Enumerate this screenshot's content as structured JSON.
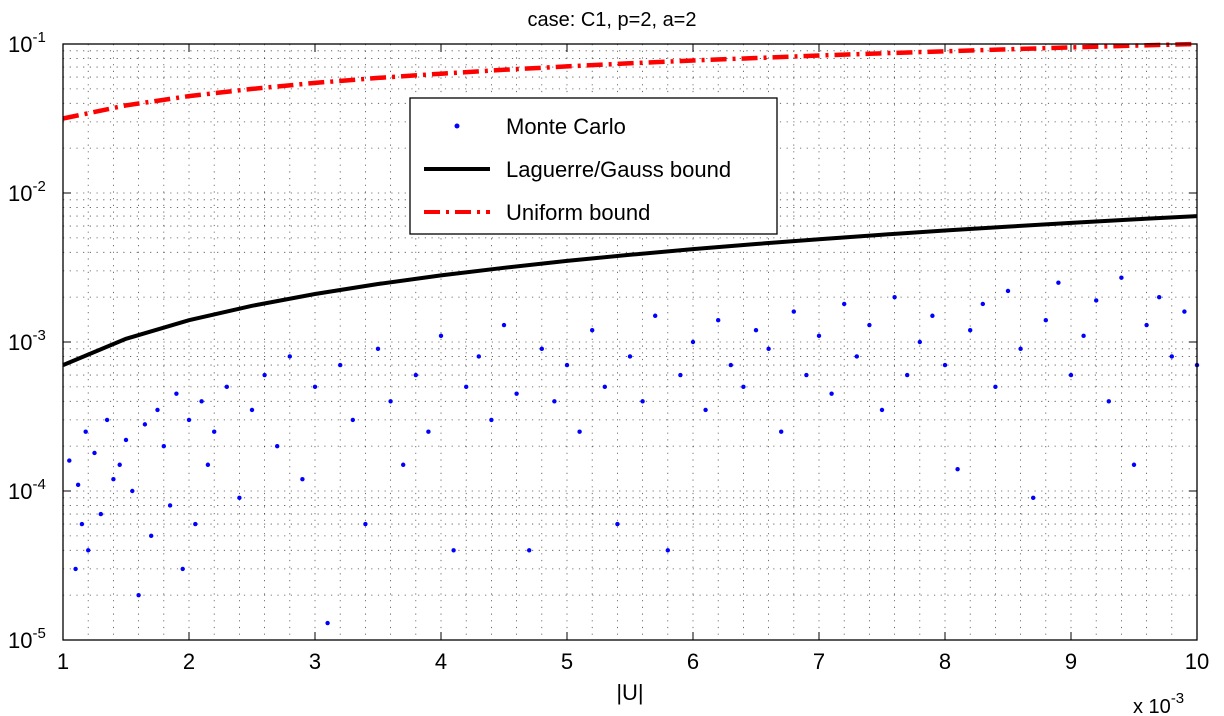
{
  "chart_data": {
    "type": "scatter",
    "title": "case: C1, p=2, a=2",
    "xlabel": "|U|",
    "x_multiplier": "x 10",
    "x_multiplier_exponent": "-3",
    "xlim": [
      1,
      10
    ],
    "ylim_exponent": [
      -5,
      -1
    ],
    "yscale": "log",
    "grid": "dotted, major and minor",
    "x_ticks": [
      "1",
      "2",
      "3",
      "4",
      "5",
      "6",
      "7",
      "8",
      "9",
      "10"
    ],
    "y_ticks": [
      {
        "base": "10",
        "exp": "-5",
        "value_exp": -5
      },
      {
        "base": "10",
        "exp": "-4",
        "value_exp": -4
      },
      {
        "base": "10",
        "exp": "-3",
        "value_exp": -3
      },
      {
        "base": "10",
        "exp": "-2",
        "value_exp": -2
      },
      {
        "base": "10",
        "exp": "-1",
        "value_exp": -1
      }
    ],
    "legend_position": "upper-center",
    "series": [
      {
        "name": "Monte Carlo",
        "style": "dots",
        "color": "#0000ff",
        "note": "1000 scattered samples between ~1.2e-5 and ~3.2e-3, rising with |U|",
        "x": [
          1.05,
          1.1,
          1.12,
          1.15,
          1.18,
          1.2,
          1.25,
          1.3,
          1.35,
          1.4,
          1.45,
          1.5,
          1.55,
          1.6,
          1.65,
          1.7,
          1.75,
          1.8,
          1.85,
          1.9,
          1.95,
          2.0,
          2.05,
          2.1,
          2.15,
          2.2,
          2.3,
          2.4,
          2.5,
          2.6,
          2.7,
          2.8,
          2.9,
          3.0,
          3.1,
          3.2,
          3.3,
          3.4,
          3.5,
          3.6,
          3.7,
          3.8,
          3.9,
          4.0,
          4.1,
          4.2,
          4.3,
          4.4,
          4.5,
          4.6,
          4.7,
          4.8,
          4.9,
          5.0,
          5.1,
          5.2,
          5.3,
          5.4,
          5.5,
          5.6,
          5.7,
          5.8,
          5.9,
          6.0,
          6.1,
          6.2,
          6.3,
          6.4,
          6.5,
          6.6,
          6.7,
          6.8,
          6.9,
          7.0,
          7.1,
          7.2,
          7.3,
          7.4,
          7.5,
          7.6,
          7.7,
          7.8,
          7.9,
          8.0,
          8.1,
          8.2,
          8.3,
          8.4,
          8.5,
          8.6,
          8.7,
          8.8,
          8.9,
          9.0,
          9.1,
          9.2,
          9.3,
          9.4,
          9.5,
          9.6,
          9.7,
          9.8,
          9.9,
          10.0
        ],
        "y": [
          0.00016,
          3e-05,
          0.00011,
          6e-05,
          0.00025,
          4e-05,
          0.00018,
          7e-05,
          0.0003,
          0.00012,
          0.00015,
          0.00022,
          0.0001,
          2e-05,
          0.00028,
          5e-05,
          0.00035,
          0.0002,
          8e-05,
          0.00045,
          3e-05,
          0.0003,
          6e-05,
          0.0004,
          0.00015,
          0.00025,
          0.0005,
          9e-05,
          0.00035,
          0.0006,
          0.0002,
          0.0008,
          0.00012,
          0.0005,
          1.3e-05,
          0.0007,
          0.0003,
          6e-05,
          0.0009,
          0.0004,
          0.00015,
          0.0006,
          0.00025,
          0.0011,
          4e-05,
          0.0005,
          0.0008,
          0.0003,
          0.0013,
          0.00045,
          4e-05,
          0.0009,
          0.0004,
          0.0007,
          0.00025,
          0.0012,
          0.0005,
          6e-05,
          0.0008,
          0.0004,
          0.0015,
          4e-05,
          0.0006,
          0.001,
          0.00035,
          0.0014,
          0.0007,
          0.0005,
          0.0012,
          0.0009,
          0.00025,
          0.0016,
          0.0006,
          0.0011,
          0.00045,
          0.0018,
          0.0008,
          0.0013,
          0.00035,
          0.002,
          0.0006,
          0.001,
          0.0015,
          0.0007,
          0.00014,
          0.0012,
          0.0018,
          0.0005,
          0.0022,
          0.0009,
          9e-05,
          0.0014,
          0.0025,
          0.0006,
          0.0011,
          0.0019,
          0.0004,
          0.0027,
          0.00015,
          0.0013,
          0.002,
          0.0008,
          0.0016,
          0.0007
        ]
      },
      {
        "name": "Laguerre/Gauss bound",
        "style": "solid",
        "color": "#000000",
        "x": [
          1,
          1.5,
          2,
          2.5,
          3,
          3.5,
          4,
          4.5,
          5,
          5.5,
          6,
          6.5,
          7,
          7.5,
          8,
          8.5,
          9,
          9.5,
          10
        ],
        "y": [
          0.0007,
          0.00105,
          0.0014,
          0.00175,
          0.0021,
          0.00245,
          0.0028,
          0.00315,
          0.0035,
          0.00385,
          0.0042,
          0.00455,
          0.0049,
          0.00525,
          0.0056,
          0.00595,
          0.0063,
          0.00665,
          0.007
        ]
      },
      {
        "name": "Uniform bound",
        "style": "dash-dot",
        "color": "#ff0000",
        "x": [
          1,
          1.5,
          2,
          2.5,
          3,
          3.5,
          4,
          4.5,
          5,
          5.5,
          6,
          6.5,
          7,
          7.5,
          8,
          8.5,
          9,
          9.5,
          10
        ],
        "y": [
          0.0316,
          0.0387,
          0.0447,
          0.05,
          0.0548,
          0.0592,
          0.0632,
          0.0671,
          0.0707,
          0.0742,
          0.0775,
          0.0806,
          0.0837,
          0.0866,
          0.0894,
          0.0922,
          0.0949,
          0.0975,
          0.1
        ]
      }
    ]
  }
}
